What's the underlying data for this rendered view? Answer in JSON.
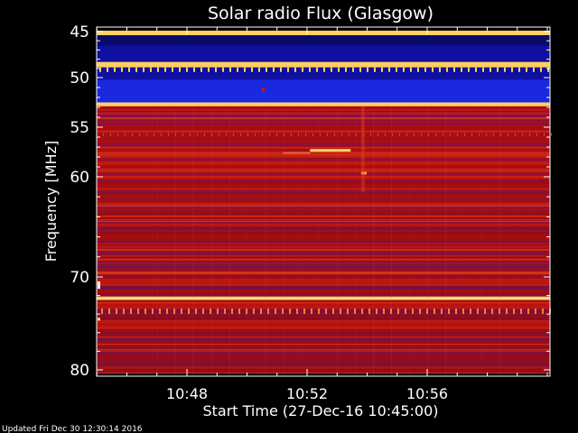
{
  "chart_data": {
    "type": "heatmap",
    "title": "Solar radio Flux (Glasgow)",
    "ylabel": "Frequency [MHz]",
    "xlabel": "Start Time (27-Dec-16 10:45:00)",
    "footer": "Updated Fri Dec 30 12:30:14 2016",
    "y_ticks": [
      "45",
      "50",
      "55",
      "60",
      "70",
      "80"
    ],
    "y_tick_values": [
      45,
      50,
      55,
      60,
      70,
      80
    ],
    "x_ticks": [
      "10:48",
      "10:52",
      "10:56"
    ],
    "x_tick_minutes": [
      3,
      7,
      11
    ],
    "ylim": [
      45,
      80
    ],
    "xlim_minutes": [
      0,
      15
    ],
    "colors": {
      "background": "#000000",
      "low": "#1010a0",
      "mid": "#c41010",
      "high": "#ffd060"
    },
    "bands": [
      {
        "f0": 44.9,
        "f1": 45.4,
        "level": "high"
      },
      {
        "f0": 45.4,
        "f1": 46.5,
        "level": "low-dark"
      },
      {
        "f0": 46.5,
        "f1": 48.3,
        "level": "low"
      },
      {
        "f0": 48.3,
        "f1": 48.9,
        "level": "high"
      },
      {
        "f0": 48.9,
        "f1": 50.2,
        "level": "low"
      },
      {
        "f0": 50.2,
        "f1": 52.5,
        "level": "low-bright"
      },
      {
        "f0": 52.5,
        "f1": 52.9,
        "level": "high"
      },
      {
        "f0": 52.9,
        "f1": 80.3,
        "level": "mid"
      }
    ]
  }
}
